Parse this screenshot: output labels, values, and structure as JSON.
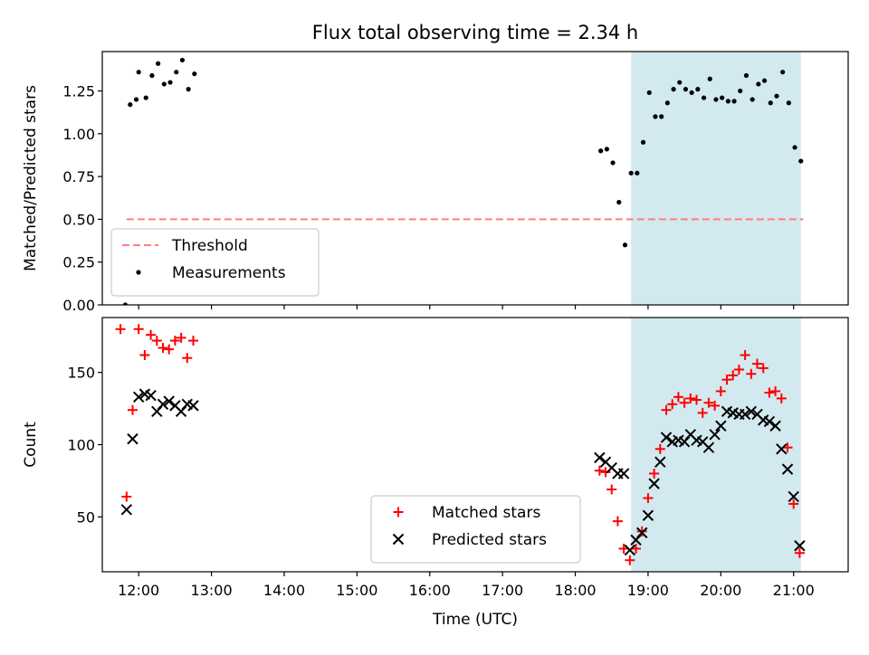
{
  "chart_data": {
    "type": "scatter",
    "title": "Flux total observing time = 2.34 h",
    "xlabel": "Time (UTC)",
    "x_ticks": [
      "12:00",
      "13:00",
      "14:00",
      "15:00",
      "16:00",
      "17:00",
      "18:00",
      "19:00",
      "20:00",
      "21:00"
    ],
    "xlim": [
      "11:30",
      "21:45"
    ],
    "shaded_interval": {
      "x_start": "18:46",
      "x_end": "21:06",
      "color": "#d3e9f0"
    },
    "colors": {
      "threshold": "#ff7f7f",
      "measurements": "#000000",
      "matched": "#ff0000",
      "predicted": "#000000"
    },
    "panels": [
      {
        "ylabel": "Matched/Predicted stars",
        "ylim": [
          0,
          1.48
        ],
        "y_ticks": [
          "0.00",
          "0.25",
          "0.50",
          "0.75",
          "1.00",
          "1.25"
        ],
        "legend": {
          "placement": "lower left",
          "entries": [
            "Threshold",
            "Measurements"
          ]
        },
        "series": [
          {
            "name": "Threshold",
            "style": "dashed-line",
            "points": [
              [
                "11:50",
                0.5
              ],
              [
                "21:08",
                0.5
              ]
            ]
          },
          {
            "name": "Measurements",
            "style": "dot",
            "points": [
              [
                "11:49",
                0.0
              ],
              [
                "11:53",
                1.17
              ],
              [
                "11:58",
                1.2
              ],
              [
                "12:00",
                1.36
              ],
              [
                "12:06",
                1.21
              ],
              [
                "12:11",
                1.34
              ],
              [
                "12:16",
                1.41
              ],
              [
                "12:21",
                1.29
              ],
              [
                "12:26",
                1.3
              ],
              [
                "12:31",
                1.36
              ],
              [
                "12:36",
                1.43
              ],
              [
                "12:41",
                1.26
              ],
              [
                "12:46",
                1.35
              ],
              [
                "18:21",
                0.9
              ],
              [
                "18:26",
                0.91
              ],
              [
                "18:31",
                0.83
              ],
              [
                "18:36",
                0.6
              ],
              [
                "18:41",
                0.35
              ],
              [
                "18:46",
                0.77
              ],
              [
                "18:51",
                0.77
              ],
              [
                "18:56",
                0.95
              ],
              [
                "19:01",
                1.24
              ],
              [
                "19:06",
                1.1
              ],
              [
                "19:11",
                1.1
              ],
              [
                "19:16",
                1.18
              ],
              [
                "19:21",
                1.26
              ],
              [
                "19:26",
                1.3
              ],
              [
                "19:31",
                1.26
              ],
              [
                "19:36",
                1.24
              ],
              [
                "19:41",
                1.26
              ],
              [
                "19:46",
                1.21
              ],
              [
                "19:51",
                1.32
              ],
              [
                "19:56",
                1.2
              ],
              [
                "20:01",
                1.21
              ],
              [
                "20:06",
                1.19
              ],
              [
                "20:11",
                1.19
              ],
              [
                "20:16",
                1.25
              ],
              [
                "20:21",
                1.34
              ],
              [
                "20:26",
                1.2
              ],
              [
                "20:31",
                1.29
              ],
              [
                "20:36",
                1.31
              ],
              [
                "20:41",
                1.18
              ],
              [
                "20:46",
                1.22
              ],
              [
                "20:51",
                1.36
              ],
              [
                "20:56",
                1.18
              ],
              [
                "21:01",
                0.92
              ],
              [
                "21:06",
                0.84
              ]
            ]
          }
        ]
      },
      {
        "ylabel": "Count",
        "ylim": [
          12,
          188
        ],
        "y_ticks": [
          "50",
          "100",
          "150"
        ],
        "legend": {
          "placement": "lower center",
          "entries": [
            "Matched stars",
            "Predicted stars"
          ]
        },
        "series": [
          {
            "name": "Matched stars",
            "style": "plus",
            "points": [
              [
                "11:45",
                180
              ],
              [
                "11:50",
                64
              ],
              [
                "11:55",
                124
              ],
              [
                "12:00",
                180
              ],
              [
                "12:05",
                162
              ],
              [
                "12:10",
                176
              ],
              [
                "12:15",
                172
              ],
              [
                "12:20",
                167
              ],
              [
                "12:25",
                166
              ],
              [
                "12:30",
                172
              ],
              [
                "12:35",
                174
              ],
              [
                "12:40",
                160
              ],
              [
                "12:45",
                172
              ],
              [
                "18:20",
                82
              ],
              [
                "18:25",
                81
              ],
              [
                "18:30",
                69
              ],
              [
                "18:35",
                47
              ],
              [
                "18:40",
                28
              ],
              [
                "18:45",
                20
              ],
              [
                "18:50",
                28
              ],
              [
                "18:55",
                40
              ],
              [
                "19:00",
                63
              ],
              [
                "19:05",
                80
              ],
              [
                "19:10",
                97
              ],
              [
                "19:15",
                124
              ],
              [
                "19:20",
                128
              ],
              [
                "19:25",
                133
              ],
              [
                "19:30",
                129
              ],
              [
                "19:35",
                132
              ],
              [
                "19:40",
                131
              ],
              [
                "19:45",
                122
              ],
              [
                "19:50",
                129
              ],
              [
                "19:55",
                127
              ],
              [
                "20:00",
                137
              ],
              [
                "20:05",
                145
              ],
              [
                "20:10",
                148
              ],
              [
                "20:15",
                152
              ],
              [
                "20:20",
                162
              ],
              [
                "20:25",
                149
              ],
              [
                "20:30",
                156
              ],
              [
                "20:35",
                153
              ],
              [
                "20:40",
                136
              ],
              [
                "20:45",
                137
              ],
              [
                "20:50",
                132
              ],
              [
                "20:55",
                98
              ],
              [
                "21:00",
                59
              ],
              [
                "21:05",
                25
              ]
            ]
          },
          {
            "name": "Predicted stars",
            "style": "x",
            "points": [
              [
                "11:50",
                55
              ],
              [
                "11:55",
                104
              ],
              [
                "12:00",
                133
              ],
              [
                "12:05",
                135
              ],
              [
                "12:10",
                134
              ],
              [
                "12:15",
                123
              ],
              [
                "12:20",
                128
              ],
              [
                "12:25",
                130
              ],
              [
                "12:30",
                127
              ],
              [
                "12:35",
                123
              ],
              [
                "12:40",
                128
              ],
              [
                "12:45",
                127
              ],
              [
                "18:20",
                91
              ],
              [
                "18:25",
                88
              ],
              [
                "18:30",
                84
              ],
              [
                "18:35",
                80
              ],
              [
                "18:40",
                80
              ],
              [
                "18:45",
                27
              ],
              [
                "18:50",
                34
              ],
              [
                "18:55",
                39
              ],
              [
                "19:00",
                51
              ],
              [
                "19:05",
                73
              ],
              [
                "19:10",
                88
              ],
              [
                "19:15",
                105
              ],
              [
                "19:20",
                102
              ],
              [
                "19:25",
                103
              ],
              [
                "19:30",
                102
              ],
              [
                "19:35",
                107
              ],
              [
                "19:40",
                103
              ],
              [
                "19:45",
                102
              ],
              [
                "19:50",
                98
              ],
              [
                "19:55",
                107
              ],
              [
                "20:00",
                113
              ],
              [
                "20:05",
                123
              ],
              [
                "20:10",
                122
              ],
              [
                "20:15",
                121
              ],
              [
                "20:20",
                121
              ],
              [
                "20:25",
                123
              ],
              [
                "20:30",
                121
              ],
              [
                "20:35",
                117
              ],
              [
                "20:40",
                116
              ],
              [
                "20:45",
                113
              ],
              [
                "20:50",
                97
              ],
              [
                "20:55",
                83
              ],
              [
                "21:00",
                64
              ],
              [
                "21:05",
                30
              ]
            ]
          }
        ]
      }
    ]
  }
}
